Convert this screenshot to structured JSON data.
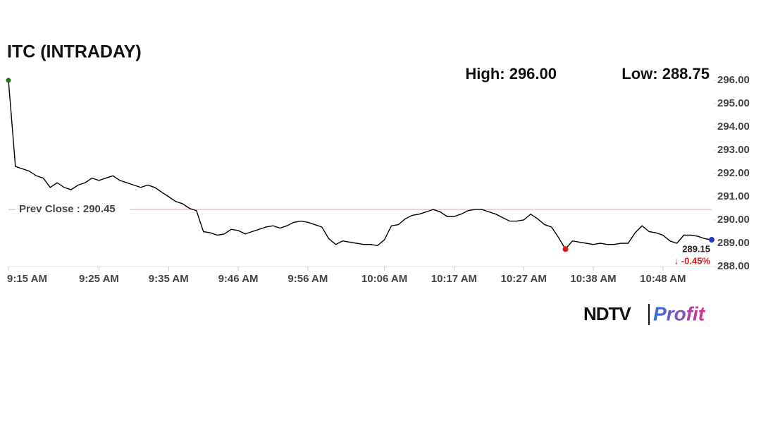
{
  "chart_data": {
    "type": "line",
    "title": "ITC (INTRADAY)",
    "high_label": "High: 296.00",
    "low_label": "Low: 288.75",
    "prev_close": {
      "value": 290.45,
      "label": "Prev Close : 290.45"
    },
    "last_label": "289.15",
    "change_label": "↓ -0.45%",
    "logo": {
      "left": "NDTV",
      "right": "Profit"
    },
    "categories": [
      "9:15 AM",
      null,
      null,
      null,
      null,
      null,
      null,
      null,
      null,
      null,
      null,
      null,
      null,
      "9:25 AM",
      null,
      null,
      null,
      null,
      null,
      null,
      null,
      null,
      null,
      "9:35 AM",
      null,
      null,
      null,
      null,
      null,
      null,
      null,
      null,
      null,
      "9:46 AM",
      null,
      null,
      null,
      null,
      null,
      null,
      null,
      null,
      null,
      "9:56 AM",
      null,
      null,
      null,
      null,
      null,
      null,
      null,
      null,
      null,
      null,
      "10:06 AM",
      null,
      null,
      null,
      null,
      null,
      null,
      null,
      null,
      null,
      "10:17 AM",
      null,
      null,
      null,
      null,
      null,
      null,
      null,
      null,
      null,
      "10:27 AM",
      null,
      null,
      null,
      null,
      null,
      null,
      null,
      null,
      null,
      "10:38 AM",
      null,
      null,
      null,
      null,
      null,
      null,
      null,
      null,
      null,
      "10:48 AM",
      null,
      null,
      null,
      null,
      null,
      null,
      null
    ],
    "series": [
      {
        "name": "ITC",
        "color": "#000000",
        "values": [
          296.0,
          292.3,
          292.2,
          292.1,
          291.9,
          291.8,
          291.4,
          291.6,
          291.4,
          291.3,
          291.5,
          291.6,
          291.8,
          291.7,
          291.8,
          291.9,
          291.7,
          291.6,
          291.5,
          291.4,
          291.5,
          291.4,
          291.2,
          291.0,
          290.8,
          290.7,
          290.5,
          290.4,
          289.5,
          289.45,
          289.35,
          289.4,
          289.6,
          289.55,
          289.4,
          289.5,
          289.6,
          289.7,
          289.75,
          289.65,
          289.75,
          289.9,
          289.95,
          289.9,
          289.8,
          289.7,
          289.2,
          288.95,
          289.1,
          289.05,
          289.0,
          288.95,
          288.95,
          288.9,
          289.15,
          289.75,
          289.8,
          290.05,
          290.2,
          290.25,
          290.35,
          290.45,
          290.35,
          290.15,
          290.15,
          290.25,
          290.4,
          290.45,
          290.45,
          290.35,
          290.25,
          290.1,
          289.95,
          289.95,
          290.0,
          290.25,
          290.05,
          289.8,
          289.7,
          289.25,
          288.75,
          289.1,
          289.05,
          289.0,
          288.95,
          289.0,
          288.95,
          288.95,
          289.0,
          289.0,
          289.45,
          289.75,
          289.5,
          289.45,
          289.35,
          289.1,
          289.0,
          289.35,
          289.35,
          289.3,
          289.2,
          289.15
        ]
      }
    ],
    "markers": {
      "start": "#1a7a1a",
      "low": "#e01b1b",
      "end": "#1f3fbf"
    },
    "prev_close_color": "#f0a0a0",
    "ylim": [
      287.94,
      296.24
    ],
    "yticks": [
      {
        "value": 288,
        "label": "288.00"
      },
      {
        "value": 289,
        "label": "289.00"
      },
      {
        "value": 290,
        "label": "290.00"
      },
      {
        "value": 291,
        "label": "291.00"
      },
      {
        "value": 292,
        "label": "292.00"
      },
      {
        "value": 293,
        "label": "293.00"
      },
      {
        "value": 294,
        "label": "294.00"
      },
      {
        "value": 295,
        "label": "295.00"
      },
      {
        "value": 296,
        "label": "296.00"
      }
    ]
  }
}
